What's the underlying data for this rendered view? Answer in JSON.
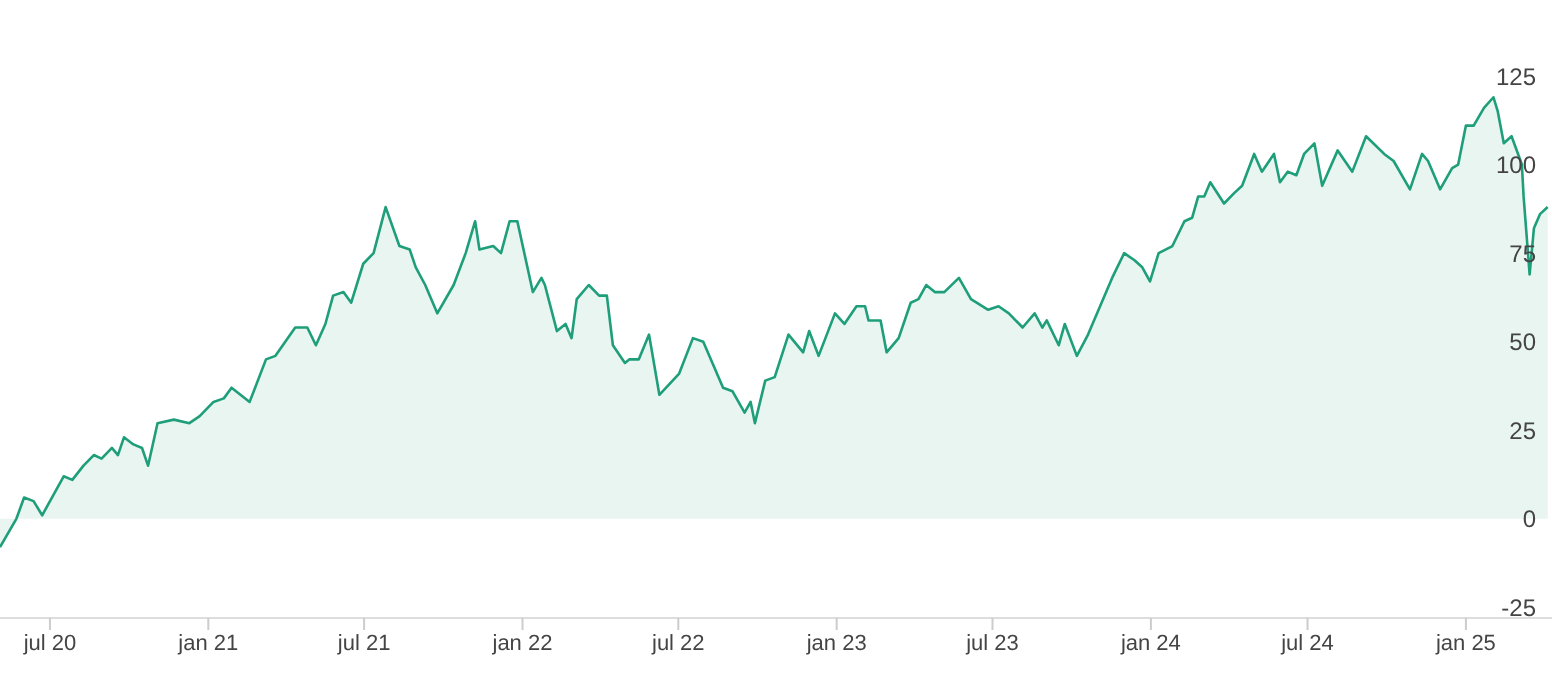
{
  "chart_data": {
    "type": "area",
    "x": [
      "2020-05-04",
      "2020-05-23",
      "2020-06-01",
      "2020-06-12",
      "2020-06-22",
      "2020-07-17",
      "2020-07-27",
      "2020-08-09",
      "2020-08-21",
      "2020-08-30",
      "2020-09-11",
      "2020-09-18",
      "2020-09-25",
      "2020-10-06",
      "2020-10-16",
      "2020-10-23",
      "2020-11-03",
      "2020-11-22",
      "2020-12-10",
      "2020-12-22",
      "2021-01-07",
      "2021-01-19",
      "2021-01-28",
      "2021-02-18",
      "2021-03-09",
      "2021-03-20",
      "2021-04-12",
      "2021-04-26",
      "2021-05-06",
      "2021-05-17",
      "2021-05-26",
      "2021-06-07",
      "2021-06-16",
      "2021-06-30",
      "2021-07-12",
      "2021-07-26",
      "2021-08-11",
      "2021-08-23",
      "2021-08-30",
      "2021-09-10",
      "2021-09-24",
      "2021-10-13",
      "2021-10-27",
      "2021-11-07",
      "2021-11-12",
      "2021-11-28",
      "2021-12-07",
      "2021-12-17",
      "2021-12-26",
      "2022-01-13",
      "2022-01-23",
      "2022-01-27",
      "2022-02-10",
      "2022-02-20",
      "2022-02-27",
      "2022-03-05",
      "2022-03-19",
      "2022-03-31",
      "2022-04-09",
      "2022-04-16",
      "2022-04-30",
      "2022-05-05",
      "2022-05-16",
      "2022-05-28",
      "2022-06-09",
      "2022-07-02",
      "2022-07-18",
      "2022-07-30",
      "2022-08-22",
      "2022-09-02",
      "2022-09-16",
      "2022-09-23",
      "2022-09-28",
      "2022-10-10",
      "2022-10-21",
      "2022-11-06",
      "2022-11-23",
      "2022-11-30",
      "2022-12-11",
      "2022-12-30",
      "2023-01-10",
      "2023-01-24",
      "2023-02-03",
      "2023-02-07",
      "2023-02-21",
      "2023-02-28",
      "2023-03-14",
      "2023-03-28",
      "2023-04-06",
      "2023-04-15",
      "2023-04-25",
      "2023-05-06",
      "2023-05-23",
      "2023-06-06",
      "2023-06-26",
      "2023-07-08",
      "2023-07-20",
      "2023-08-05",
      "2023-08-19",
      "2023-08-28",
      "2023-09-02",
      "2023-09-16",
      "2023-09-23",
      "2023-10-07",
      "2023-10-20",
      "2023-11-03",
      "2023-11-17",
      "2023-12-01",
      "2023-12-13",
      "2023-12-22",
      "2023-12-31",
      "2024-01-10",
      "2024-01-26",
      "2024-02-09",
      "2024-02-18",
      "2024-02-25",
      "2024-03-03",
      "2024-03-10",
      "2024-03-26",
      "2024-04-07",
      "2024-04-16",
      "2024-04-30",
      "2024-05-09",
      "2024-05-23",
      "2024-05-30",
      "2024-06-08",
      "2024-06-18",
      "2024-06-27",
      "2024-07-09",
      "2024-07-18",
      "2024-08-05",
      "2024-08-22",
      "2024-09-07",
      "2024-09-28",
      "2024-10-09",
      "2024-10-28",
      "2024-11-11",
      "2024-11-18",
      "2024-12-02",
      "2024-12-16",
      "2024-12-23",
      "2025-01-01",
      "2025-01-10",
      "2025-01-22",
      "2025-02-02",
      "2025-02-07",
      "2025-02-14",
      "2025-02-23",
      "2025-03-07",
      "2025-03-09",
      "2025-03-16",
      "2025-03-21",
      "2025-03-28",
      "2025-04-06"
    ],
    "series": [
      {
        "color": "#1f9e7a",
        "values": [
          -8,
          0,
          6,
          5,
          1,
          12,
          11,
          15,
          18,
          17,
          20,
          18,
          23,
          21,
          20,
          15,
          27,
          28,
          27,
          29,
          33,
          34,
          37,
          33,
          45,
          46,
          54,
          54,
          49,
          55,
          63,
          64,
          61,
          72,
          75,
          88,
          77,
          76,
          71,
          66,
          58,
          66,
          75,
          84,
          76,
          77,
          75,
          84,
          84,
          64,
          68,
          66,
          53,
          55,
          51,
          62,
          66,
          63,
          63,
          49,
          44,
          45,
          45,
          52,
          35,
          41,
          51,
          50,
          37,
          36,
          30,
          33,
          27,
          39,
          40,
          52,
          47,
          53,
          46,
          58,
          55,
          60,
          60,
          56,
          56,
          47,
          51,
          61,
          62,
          66,
          64,
          64,
          68,
          62,
          59,
          60,
          58,
          54,
          58,
          54,
          56,
          49,
          55,
          46,
          52,
          60,
          68,
          75,
          73,
          71,
          67,
          75,
          77,
          84,
          85,
          91,
          91,
          95,
          89,
          92,
          94,
          103,
          98,
          103,
          95,
          98,
          97,
          103,
          106,
          94,
          104,
          98,
          108,
          103,
          101,
          93,
          103,
          101,
          93,
          99,
          100,
          111,
          111,
          116,
          119,
          115,
          106,
          108,
          100,
          91,
          69,
          82,
          86,
          88
        ]
      }
    ],
    "xlim": [
      "2020-05-04",
      "2025-04-11"
    ],
    "xticks": [
      {
        "value": "2020-07-01",
        "label": "jul 20"
      },
      {
        "value": "2021-01-01",
        "label": "jan 21"
      },
      {
        "value": "2021-07-01",
        "label": "jul 21"
      },
      {
        "value": "2022-01-01",
        "label": "jan 22"
      },
      {
        "value": "2022-07-01",
        "label": "jul 22"
      },
      {
        "value": "2023-01-01",
        "label": "jan 23"
      },
      {
        "value": "2023-07-01",
        "label": "jul 23"
      },
      {
        "value": "2024-01-01",
        "label": "jan 24"
      },
      {
        "value": "2024-07-01",
        "label": "jul 24"
      },
      {
        "value": "2025-01-01",
        "label": "jan 25"
      }
    ],
    "ylim": [
      -28,
      125
    ],
    "yticks": [
      -25,
      0,
      25,
      50,
      75,
      100,
      125
    ],
    "grid": false,
    "legend": false,
    "marker": "none",
    "line_style": "solid"
  }
}
